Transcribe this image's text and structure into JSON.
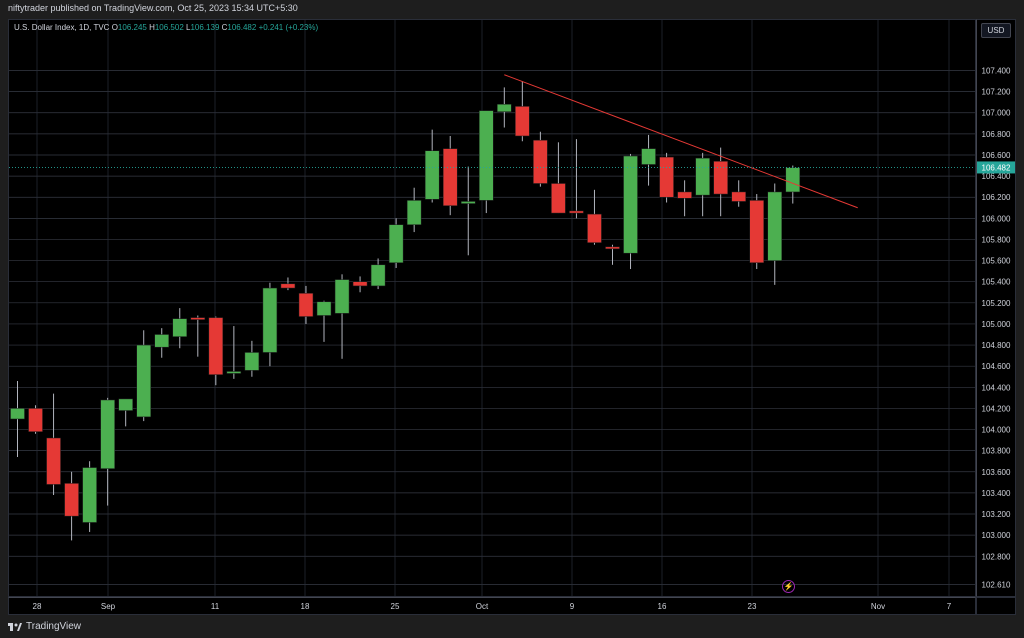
{
  "header": {
    "published": "niftytrader published on TradingView.com, Oct 25, 2023 15:34 UTC+5:30"
  },
  "legend": {
    "symbol": "U.S. Dollar Index, 1D, TVC",
    "open_label": "O",
    "open": "106.245",
    "high_label": "H",
    "high": "106.502",
    "low_label": "L",
    "low": "106.139",
    "close_label": "C",
    "close": "106.482",
    "change": "+0.241 (+0.23%)"
  },
  "price_scale": {
    "currency_button": "USD",
    "ticks": [
      "107.400",
      "107.200",
      "107.000",
      "106.800",
      "106.600",
      "106.400",
      "106.200",
      "106.000",
      "105.800",
      "105.600",
      "105.400",
      "105.200",
      "105.000",
      "104.800",
      "104.600",
      "104.400",
      "104.200",
      "104.000",
      "103.800",
      "103.600",
      "103.400",
      "103.200",
      "103.000",
      "102.800",
      "102.610"
    ],
    "last_price": "106.482"
  },
  "time_scale": {
    "labels": [
      "28",
      "Sep",
      "11",
      "18",
      "25",
      "Oct",
      "9",
      "16",
      "23",
      "Nov",
      "7"
    ]
  },
  "footer": {
    "brand": "TradingView"
  },
  "colors": {
    "up": "#4caf50",
    "down": "#e53935",
    "trendline": "#e53935",
    "last_price_bg": "#26a69a"
  },
  "chart_data": {
    "type": "candlestick",
    "title": "U.S. Dollar Index, 1D, TVC",
    "ylim": [
      102.61,
      107.6
    ],
    "candles": [
      {
        "o": 104.1,
        "h": 104.46,
        "l": 103.74,
        "c": 104.2
      },
      {
        "o": 104.2,
        "h": 104.23,
        "l": 103.96,
        "c": 103.98
      },
      {
        "o": 103.92,
        "h": 104.34,
        "l": 103.38,
        "c": 103.48
      },
      {
        "o": 103.49,
        "h": 103.6,
        "l": 102.95,
        "c": 103.18
      },
      {
        "o": 103.12,
        "h": 103.7,
        "l": 103.03,
        "c": 103.64
      },
      {
        "o": 103.63,
        "h": 104.3,
        "l": 103.28,
        "c": 104.28
      },
      {
        "o": 104.18,
        "h": 104.28,
        "l": 104.03,
        "c": 104.29
      },
      {
        "o": 104.12,
        "h": 104.94,
        "l": 104.08,
        "c": 104.8
      },
      {
        "o": 104.78,
        "h": 104.96,
        "l": 104.68,
        "c": 104.9
      },
      {
        "o": 104.88,
        "h": 105.15,
        "l": 104.77,
        "c": 105.05
      },
      {
        "o": 105.06,
        "h": 105.08,
        "l": 104.69,
        "c": 105.05
      },
      {
        "o": 105.06,
        "h": 105.07,
        "l": 104.42,
        "c": 104.52
      },
      {
        "o": 104.55,
        "h": 104.98,
        "l": 104.48,
        "c": 104.55
      },
      {
        "o": 104.56,
        "h": 104.84,
        "l": 104.5,
        "c": 104.73
      },
      {
        "o": 104.73,
        "h": 105.39,
        "l": 104.6,
        "c": 105.34
      },
      {
        "o": 105.38,
        "h": 105.44,
        "l": 105.32,
        "c": 105.34
      },
      {
        "o": 105.29,
        "h": 105.36,
        "l": 105.0,
        "c": 105.07
      },
      {
        "o": 105.08,
        "h": 105.22,
        "l": 104.83,
        "c": 105.21
      },
      {
        "o": 105.1,
        "h": 105.47,
        "l": 104.67,
        "c": 105.42
      },
      {
        "o": 105.4,
        "h": 105.45,
        "l": 105.3,
        "c": 105.36
      },
      {
        "o": 105.36,
        "h": 105.62,
        "l": 105.33,
        "c": 105.56
      },
      {
        "o": 105.58,
        "h": 106.0,
        "l": 105.53,
        "c": 105.94
      },
      {
        "o": 105.94,
        "h": 106.29,
        "l": 105.87,
        "c": 106.17
      },
      {
        "o": 106.18,
        "h": 106.84,
        "l": 106.15,
        "c": 106.64
      },
      {
        "o": 106.66,
        "h": 106.78,
        "l": 106.03,
        "c": 106.12
      },
      {
        "o": 106.14,
        "h": 106.49,
        "l": 105.65,
        "c": 106.16
      },
      {
        "o": 106.17,
        "h": 107.0,
        "l": 106.05,
        "c": 107.02
      },
      {
        "o": 107.01,
        "h": 107.24,
        "l": 106.86,
        "c": 107.08
      },
      {
        "o": 107.06,
        "h": 107.3,
        "l": 106.73,
        "c": 106.78
      },
      {
        "o": 106.74,
        "h": 106.82,
        "l": 106.3,
        "c": 106.33
      },
      {
        "o": 106.33,
        "h": 106.72,
        "l": 106.05,
        "c": 106.05
      },
      {
        "o": 106.07,
        "h": 106.75,
        "l": 106.0,
        "c": 106.05
      },
      {
        "o": 106.04,
        "h": 106.27,
        "l": 105.75,
        "c": 105.77
      },
      {
        "o": 105.73,
        "h": 105.75,
        "l": 105.56,
        "c": 105.72
      },
      {
        "o": 105.67,
        "h": 106.61,
        "l": 105.52,
        "c": 106.59
      },
      {
        "o": 106.51,
        "h": 106.79,
        "l": 106.31,
        "c": 106.66
      },
      {
        "o": 106.58,
        "h": 106.62,
        "l": 106.15,
        "c": 106.2
      },
      {
        "o": 106.25,
        "h": 106.36,
        "l": 106.02,
        "c": 106.19
      },
      {
        "o": 106.22,
        "h": 106.62,
        "l": 106.02,
        "c": 106.57
      },
      {
        "o": 106.54,
        "h": 106.67,
        "l": 106.02,
        "c": 106.23
      },
      {
        "o": 106.25,
        "h": 106.36,
        "l": 106.11,
        "c": 106.16
      },
      {
        "o": 106.17,
        "h": 106.23,
        "l": 105.52,
        "c": 105.58
      },
      {
        "o": 105.6,
        "h": 106.33,
        "l": 105.37,
        "c": 106.25
      },
      {
        "o": 106.25,
        "h": 106.5,
        "l": 106.14,
        "c": 106.48
      }
    ],
    "trendline": {
      "from": {
        "index": 27,
        "price": 107.36
      },
      "to": {
        "index": 46.6,
        "price": 106.1
      }
    }
  }
}
